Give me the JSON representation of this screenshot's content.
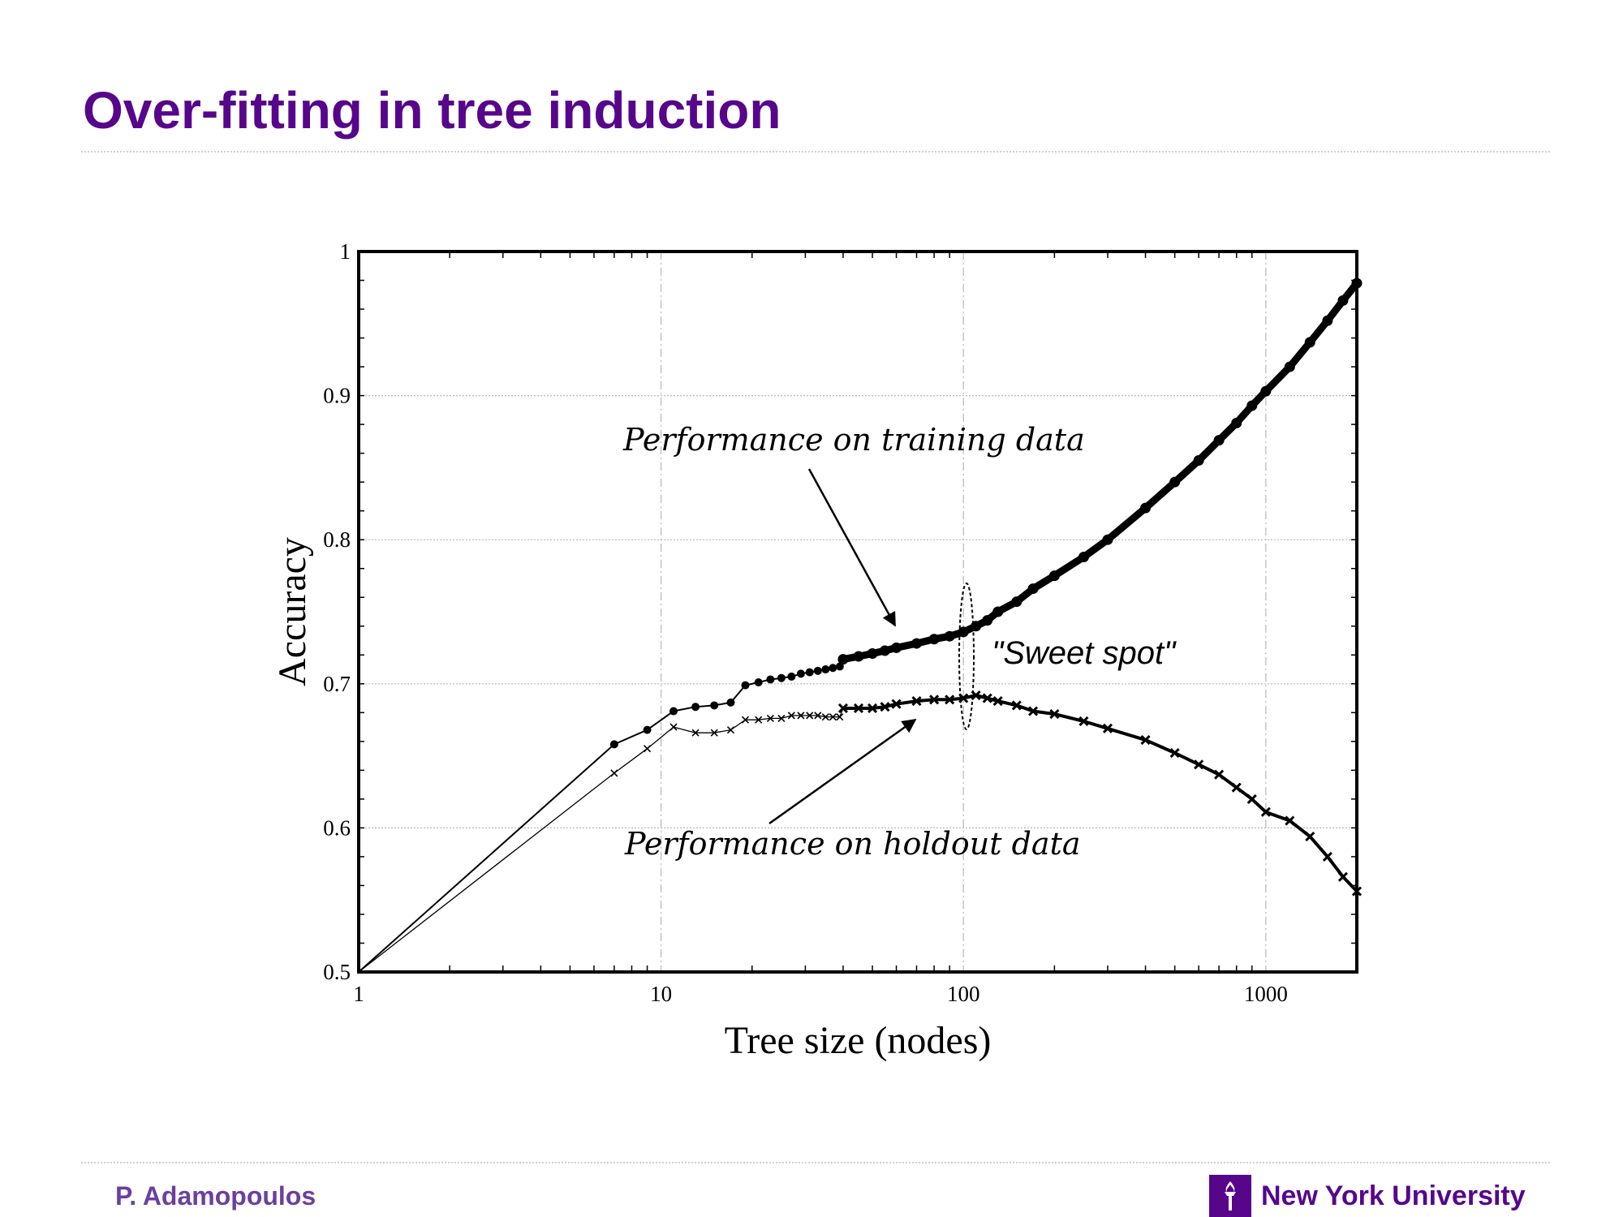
{
  "slide": {
    "title": "Over-fitting in tree induction",
    "author": "P. Adamopoulos",
    "university": "New York University",
    "logo_icon": "nyu-torch-icon"
  },
  "colors": {
    "title": "#57068c",
    "author": "#6b3fa0",
    "logo_bg": "#57068c",
    "series": "#000000",
    "grid": "#b8b8b8"
  },
  "chart_data": {
    "type": "line",
    "xscale": "log",
    "xlim": [
      1,
      2000
    ],
    "ylim": [
      0.5,
      1
    ],
    "xticks": [
      1,
      10,
      100,
      1000
    ],
    "xtick_labels": [
      "1",
      "10",
      "100",
      "1000"
    ],
    "yticks": [
      0.5,
      0.6,
      0.7,
      0.8,
      0.9,
      1
    ],
    "ytick_labels": [
      "0.5",
      "0.6",
      "0.7",
      "0.8",
      "0.9",
      "1"
    ],
    "xlabel": "Tree size (nodes)",
    "ylabel": "Accuracy",
    "grid": true,
    "annotations": {
      "training": "Performance on training data",
      "holdout": "Performance on holdout data",
      "sweet_spot": "\"Sweet spot\""
    },
    "sweet_spot_x": 100,
    "series": [
      {
        "key": "training",
        "marker": "dot",
        "x": [
          1,
          7,
          9,
          11,
          13,
          15,
          17,
          19,
          21,
          23,
          25,
          27,
          29,
          31,
          33,
          35,
          37,
          39,
          40,
          45,
          50,
          55,
          60,
          70,
          80,
          90,
          100,
          110,
          120,
          130,
          150,
          170,
          200,
          250,
          300,
          400,
          500,
          600,
          700,
          800,
          900,
          1000,
          1200,
          1400,
          1600,
          1800,
          2000
        ],
        "y": [
          0.5,
          0.658,
          0.668,
          0.681,
          0.684,
          0.685,
          0.687,
          0.699,
          0.701,
          0.703,
          0.704,
          0.705,
          0.707,
          0.708,
          0.709,
          0.71,
          0.711,
          0.712,
          0.717,
          0.719,
          0.721,
          0.723,
          0.725,
          0.728,
          0.731,
          0.733,
          0.736,
          0.74,
          0.744,
          0.75,
          0.757,
          0.766,
          0.775,
          0.788,
          0.8,
          0.822,
          0.84,
          0.855,
          0.869,
          0.881,
          0.893,
          0.903,
          0.92,
          0.937,
          0.952,
          0.966,
          0.978
        ]
      },
      {
        "key": "holdout",
        "marker": "x",
        "x": [
          1,
          7,
          9,
          11,
          13,
          15,
          17,
          19,
          21,
          23,
          25,
          27,
          29,
          31,
          33,
          35,
          37,
          39,
          40,
          45,
          50,
          55,
          60,
          70,
          80,
          90,
          100,
          110,
          120,
          130,
          150,
          170,
          200,
          250,
          300,
          400,
          500,
          600,
          700,
          800,
          900,
          1000,
          1200,
          1400,
          1600,
          1800,
          2000
        ],
        "y": [
          0.5,
          0.638,
          0.655,
          0.67,
          0.666,
          0.666,
          0.668,
          0.675,
          0.675,
          0.676,
          0.676,
          0.678,
          0.678,
          0.678,
          0.678,
          0.677,
          0.677,
          0.677,
          0.683,
          0.683,
          0.683,
          0.684,
          0.686,
          0.688,
          0.689,
          0.689,
          0.69,
          0.692,
          0.69,
          0.688,
          0.685,
          0.681,
          0.679,
          0.674,
          0.669,
          0.661,
          0.652,
          0.644,
          0.637,
          0.628,
          0.62,
          0.611,
          0.605,
          0.594,
          0.58,
          0.566,
          0.556
        ]
      }
    ]
  }
}
